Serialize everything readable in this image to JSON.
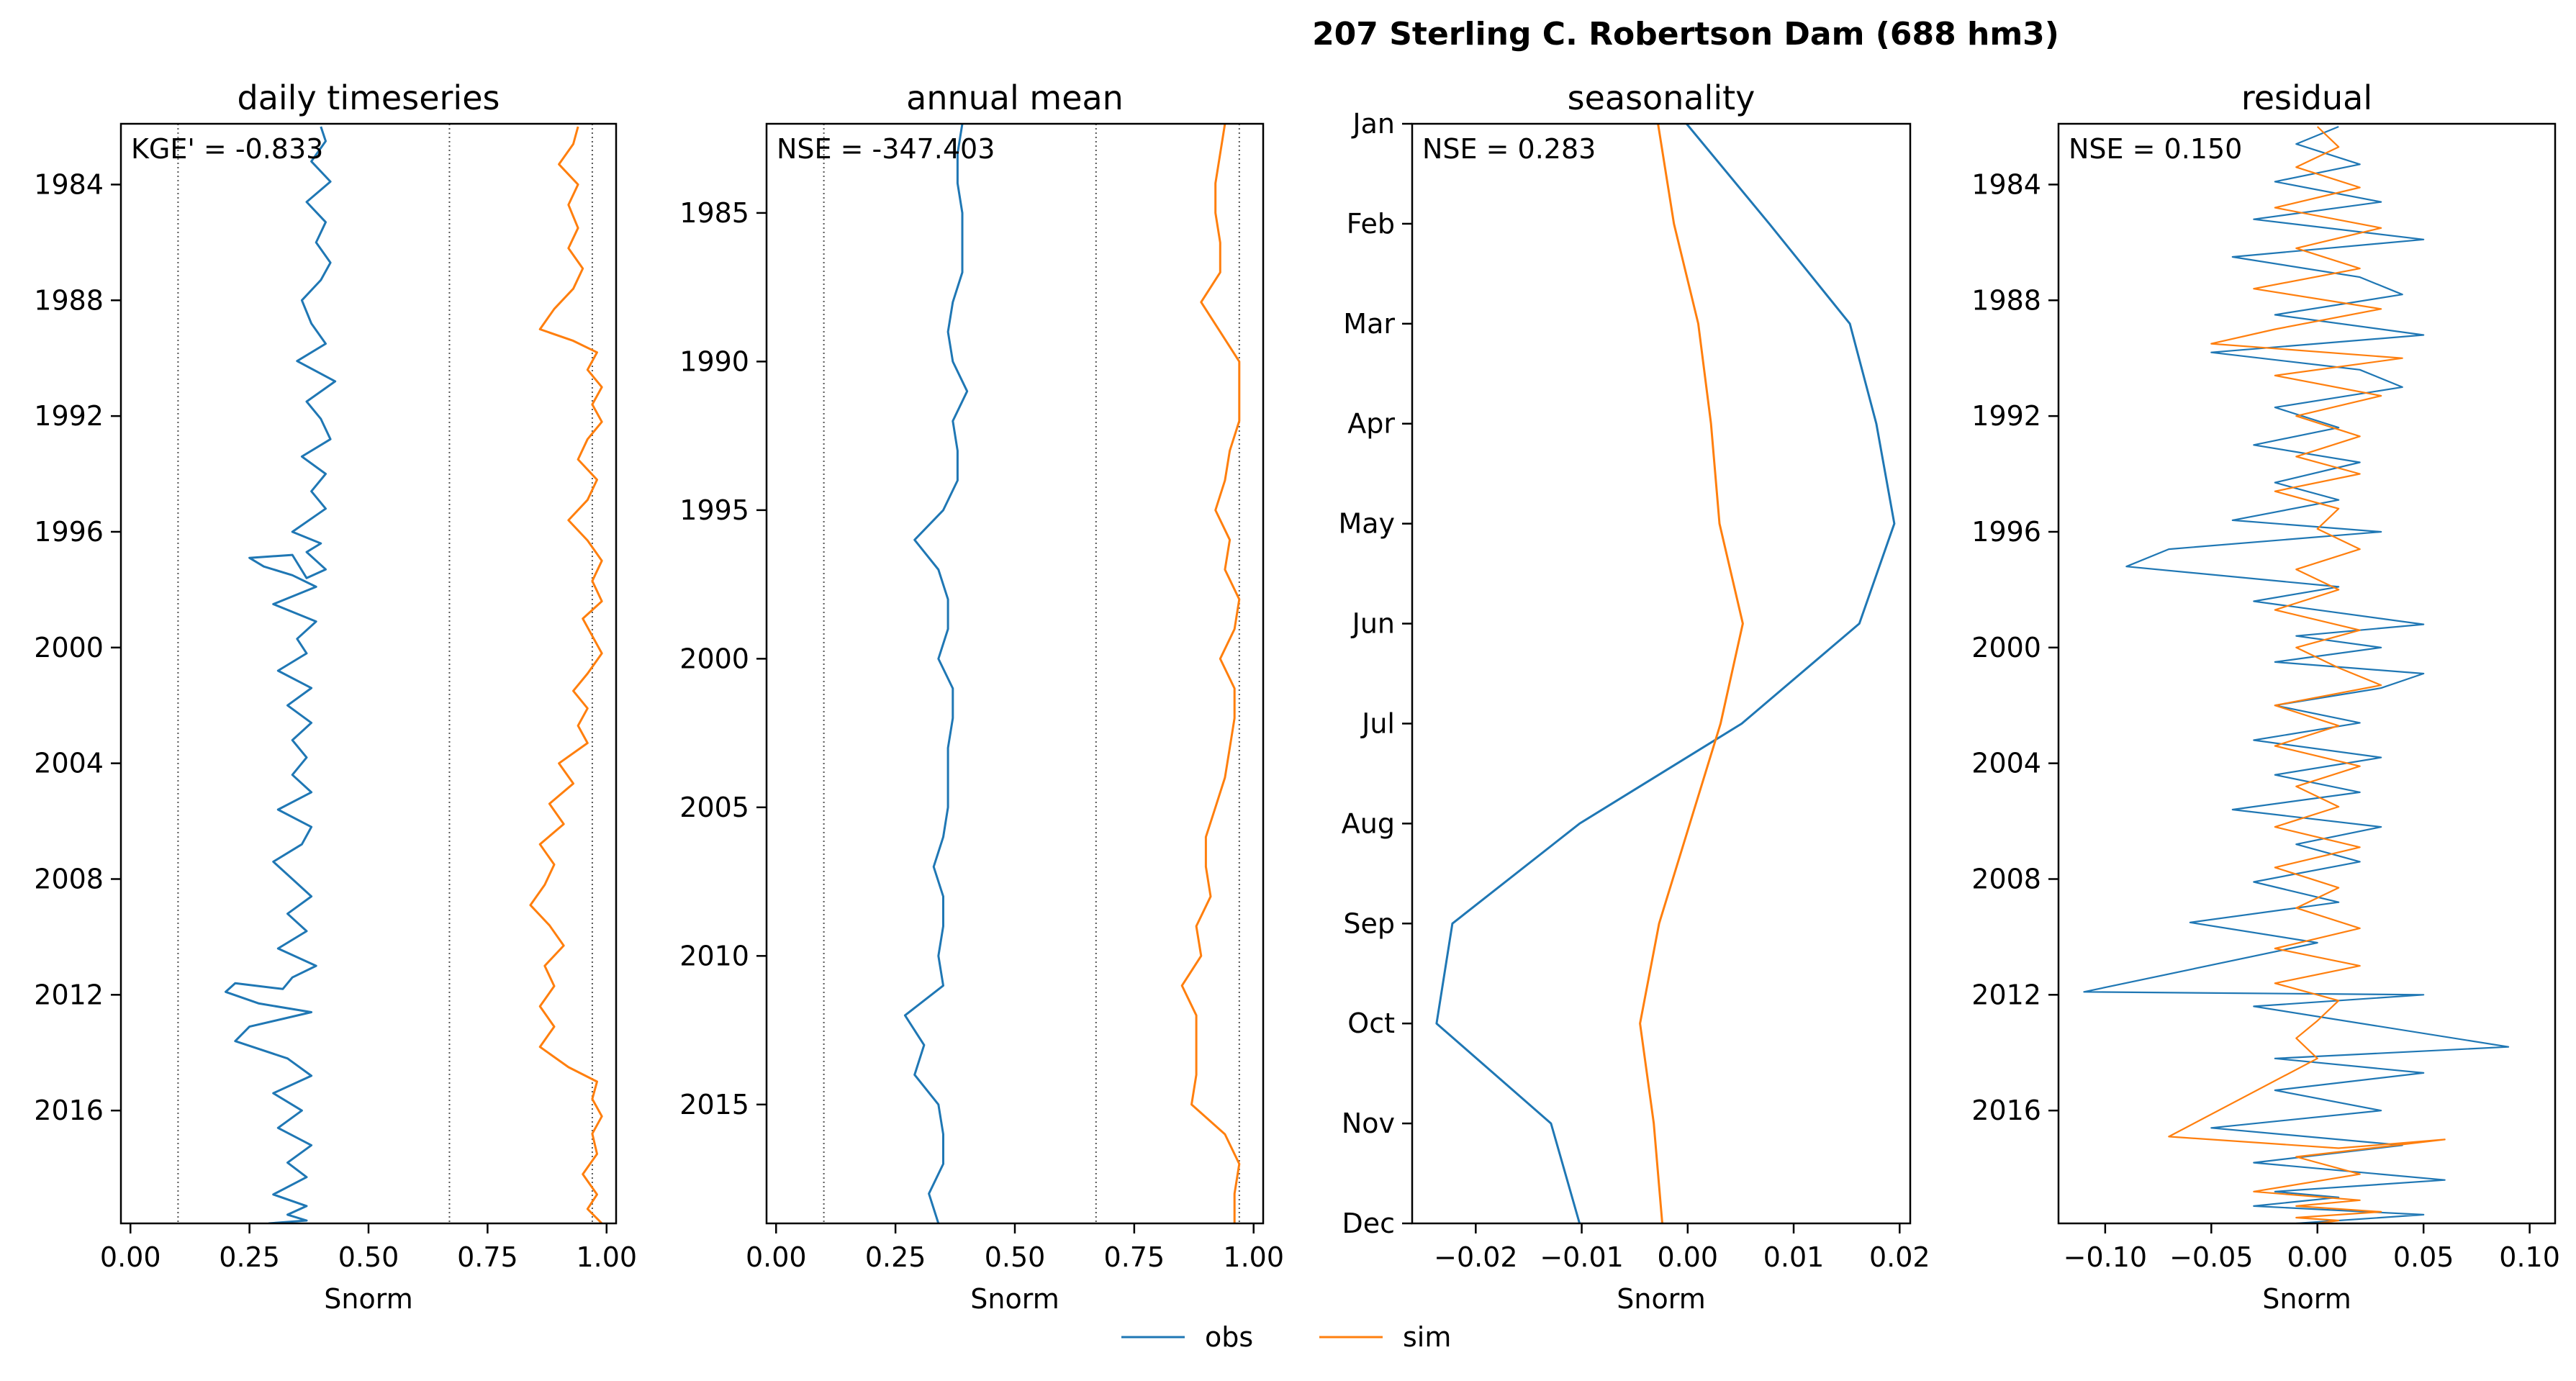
{
  "figure": {
    "suptitle": "207  Sterling C. Robertson Dam (688 hm3)",
    "legend": {
      "position": "bottom-center",
      "entries": [
        "obs",
        "sim"
      ]
    },
    "colors": {
      "obs": "#1f77b4",
      "sim": "#ff7f0e",
      "reference_lines": "#555555"
    }
  },
  "chart_data": [
    {
      "type": "line",
      "title": "daily timeseries",
      "xlabel": "Snorm",
      "ylabel": "",
      "annotation": "KGE' = -0.833",
      "xlim": [
        -0.02,
        1.02
      ],
      "ylim": [
        2019.9,
        1981.9
      ],
      "y_orientation": "inverted (time increases downward)",
      "xticks": [
        "0.00",
        "0.25",
        "0.50",
        "0.75",
        "1.00"
      ],
      "xtick_values": [
        0,
        0.25,
        0.5,
        0.75,
        1.0
      ],
      "yticks": [
        "1984",
        "1988",
        "1992",
        "1996",
        "2000",
        "2004",
        "2008",
        "2012",
        "2016"
      ],
      "ytick_values": [
        1984,
        1988,
        1992,
        1996,
        2000,
        2004,
        2008,
        2012,
        2016
      ],
      "reference_lines_x": [
        0.1,
        0.67,
        0.97
      ],
      "series": [
        {
          "name": "obs",
          "x": [
            0.4,
            0.41,
            0.38,
            0.42,
            0.37,
            0.41,
            0.39,
            0.42,
            0.4,
            0.36,
            0.38,
            0.41,
            0.35,
            0.43,
            0.37,
            0.4,
            0.42,
            0.36,
            0.41,
            0.38,
            0.41,
            0.34,
            0.4,
            0.37,
            0.41,
            0.37,
            0.34,
            0.25,
            0.28,
            0.34,
            0.39,
            0.3,
            0.39,
            0.35,
            0.37,
            0.31,
            0.38,
            0.33,
            0.38,
            0.34,
            0.37,
            0.34,
            0.38,
            0.31,
            0.38,
            0.36,
            0.3,
            0.34,
            0.38,
            0.33,
            0.37,
            0.31,
            0.39,
            0.34,
            0.32,
            0.22,
            0.2,
            0.27,
            0.38,
            0.25,
            0.22,
            0.33,
            0.38,
            0.3,
            0.36,
            0.31,
            0.38,
            0.33,
            0.37,
            0.3,
            0.37,
            0.33,
            0.37,
            0.29
          ],
          "y": [
            1982.0,
            1982.5,
            1983.2,
            1983.9,
            1984.6,
            1985.3,
            1986.0,
            1986.7,
            1987.3,
            1988.0,
            1988.8,
            1989.5,
            1990.1,
            1990.8,
            1991.5,
            1992.1,
            1992.8,
            1993.4,
            1994.0,
            1994.6,
            1995.2,
            1996.0,
            1996.4,
            1996.7,
            1997.3,
            1997.6,
            1996.8,
            1996.9,
            1997.2,
            1997.5,
            1997.9,
            1998.5,
            1999.1,
            1999.7,
            2000.2,
            2000.8,
            2001.4,
            2002.0,
            2002.6,
            2003.2,
            2003.8,
            2004.4,
            2005.0,
            2005.6,
            2006.2,
            2006.8,
            2007.4,
            2008.0,
            2008.6,
            2009.2,
            2009.8,
            2010.4,
            2011.0,
            2011.4,
            2011.8,
            2011.6,
            2011.9,
            2012.3,
            2012.6,
            2013.1,
            2013.6,
            2014.2,
            2014.8,
            2015.4,
            2016.0,
            2016.6,
            2017.2,
            2017.8,
            2018.3,
            2018.9,
            2019.3,
            2019.6,
            2019.8,
            2019.9
          ]
        },
        {
          "name": "sim",
          "x": [
            0.94,
            0.93,
            0.9,
            0.94,
            0.92,
            0.94,
            0.92,
            0.95,
            0.93,
            0.89,
            0.86,
            0.93,
            0.98,
            0.96,
            0.99,
            0.97,
            0.99,
            0.96,
            0.94,
            0.98,
            0.96,
            0.92,
            0.96,
            0.99,
            0.97,
            0.99,
            0.95,
            0.97,
            0.99,
            0.96,
            0.93,
            0.96,
            0.94,
            0.96,
            0.9,
            0.93,
            0.88,
            0.91,
            0.86,
            0.89,
            0.87,
            0.84,
            0.88,
            0.91,
            0.87,
            0.89,
            0.86,
            0.89,
            0.86,
            0.92,
            0.98,
            0.97,
            0.99,
            0.97,
            0.98,
            0.95,
            0.98,
            0.96,
            0.99
          ],
          "y": [
            1982.0,
            1982.6,
            1983.3,
            1984.0,
            1984.7,
            1985.5,
            1986.2,
            1986.9,
            1987.6,
            1988.3,
            1989.0,
            1989.4,
            1989.8,
            1990.4,
            1991.0,
            1991.6,
            1992.2,
            1992.8,
            1993.5,
            1994.2,
            1994.9,
            1995.6,
            1996.3,
            1997.0,
            1997.7,
            1998.4,
            1999.0,
            1999.6,
            2000.2,
            2000.9,
            2001.5,
            2002.1,
            2002.7,
            2003.3,
            2004.0,
            2004.7,
            2005.4,
            2006.1,
            2006.8,
            2007.5,
            2008.2,
            2008.9,
            2009.6,
            2010.3,
            2011.0,
            2011.7,
            2012.4,
            2013.1,
            2013.8,
            2014.5,
            2015.0,
            2015.6,
            2016.2,
            2016.8,
            2017.5,
            2018.2,
            2018.9,
            2019.4,
            2019.9
          ]
        }
      ]
    },
    {
      "type": "line",
      "title": "annual mean",
      "xlabel": "Snorm",
      "ylabel": "",
      "annotation": "NSE = -347.403",
      "xlim": [
        -0.02,
        1.02
      ],
      "ylim": [
        2019.0,
        1982.0
      ],
      "y_orientation": "inverted (time increases downward)",
      "xticks": [
        "0.00",
        "0.25",
        "0.50",
        "0.75",
        "1.00"
      ],
      "xtick_values": [
        0,
        0.25,
        0.5,
        0.75,
        1.0
      ],
      "yticks": [
        "1985",
        "1990",
        "1995",
        "2000",
        "2005",
        "2010",
        "2015"
      ],
      "ytick_values": [
        1985,
        1990,
        1995,
        2000,
        2005,
        2010,
        2015
      ],
      "reference_lines_x": [
        0.1,
        0.67,
        0.97
      ],
      "series": [
        {
          "name": "obs",
          "years": [
            1982,
            1983,
            1984,
            1985,
            1986,
            1987,
            1988,
            1989,
            1990,
            1991,
            1992,
            1993,
            1994,
            1995,
            1996,
            1997,
            1998,
            1999,
            2000,
            2001,
            2002,
            2003,
            2004,
            2005,
            2006,
            2007,
            2008,
            2009,
            2010,
            2011,
            2012,
            2013,
            2014,
            2015,
            2016,
            2017,
            2018,
            2019
          ],
          "values": [
            0.39,
            0.38,
            0.38,
            0.39,
            0.39,
            0.39,
            0.37,
            0.36,
            0.37,
            0.4,
            0.37,
            0.38,
            0.38,
            0.35,
            0.29,
            0.34,
            0.36,
            0.36,
            0.34,
            0.37,
            0.37,
            0.36,
            0.36,
            0.36,
            0.35,
            0.33,
            0.35,
            0.35,
            0.34,
            0.35,
            0.27,
            0.31,
            0.29,
            0.34,
            0.35,
            0.35,
            0.32,
            0.34
          ]
        },
        {
          "name": "sim",
          "years": [
            1982,
            1983,
            1984,
            1985,
            1986,
            1987,
            1988,
            1989,
            1990,
            1991,
            1992,
            1993,
            1994,
            1995,
            1996,
            1997,
            1998,
            1999,
            2000,
            2001,
            2002,
            2003,
            2004,
            2005,
            2006,
            2007,
            2008,
            2009,
            2010,
            2011,
            2012,
            2013,
            2014,
            2015,
            2016,
            2017,
            2018,
            2019
          ],
          "values": [
            0.94,
            0.93,
            0.92,
            0.92,
            0.93,
            0.93,
            0.89,
            0.93,
            0.97,
            0.97,
            0.97,
            0.95,
            0.94,
            0.92,
            0.95,
            0.94,
            0.97,
            0.96,
            0.93,
            0.96,
            0.96,
            0.95,
            0.94,
            0.92,
            0.9,
            0.9,
            0.91,
            0.88,
            0.89,
            0.85,
            0.88,
            0.88,
            0.88,
            0.87,
            0.94,
            0.97,
            0.96,
            0.96
          ]
        }
      ]
    },
    {
      "type": "line",
      "title": "seasonality",
      "xlabel": "Snorm",
      "ylabel": "",
      "annotation": "NSE = 0.283",
      "xlim": [
        -0.026,
        0.021
      ],
      "ylim": [
        12,
        1
      ],
      "y_orientation": "inverted (Jan at top, Dec at bottom)",
      "xticks": [
        "−0.02",
        "−0.01",
        "0.00",
        "0.01",
        "0.02"
      ],
      "xtick_values": [
        -0.02,
        -0.01,
        0.0,
        0.01,
        0.02
      ],
      "months": [
        "Jan",
        "Feb",
        "Mar",
        "Apr",
        "May",
        "Jun",
        "Jul",
        "Aug",
        "Sep",
        "Oct",
        "Nov",
        "Dec"
      ],
      "series": [
        {
          "name": "obs",
          "values": [
            -0.0001,
            0.0077,
            0.0153,
            0.0178,
            0.0195,
            0.0162,
            0.0051,
            -0.0102,
            -0.0222,
            -0.0237,
            -0.0129,
            -0.0102
          ]
        },
        {
          "name": "sim",
          "values": [
            -0.0028,
            -0.0013,
            0.001,
            0.0022,
            0.003,
            0.0052,
            0.0031,
            0.0002,
            -0.0027,
            -0.0045,
            -0.0032,
            -0.0024
          ]
        }
      ]
    },
    {
      "type": "line",
      "title": "residual",
      "xlabel": "Snorm",
      "ylabel": "",
      "annotation": "NSE = 0.150",
      "xlim": [
        -0.122,
        0.112
      ],
      "ylim": [
        2019.9,
        1981.9
      ],
      "y_orientation": "inverted (time increases downward)",
      "xticks": [
        "−0.10",
        "−0.05",
        "0.00",
        "0.05",
        "0.10"
      ],
      "xtick_values": [
        -0.1,
        -0.05,
        0.0,
        0.05,
        0.1
      ],
      "yticks": [
        "1984",
        "1988",
        "1992",
        "1996",
        "2000",
        "2004",
        "2008",
        "2012",
        "2016"
      ],
      "ytick_values": [
        1984,
        1988,
        1992,
        1996,
        2000,
        2004,
        2008,
        2012,
        2016
      ],
      "series": [
        {
          "name": "obs",
          "x": [
            0.01,
            -0.01,
            0.02,
            -0.02,
            0.03,
            -0.03,
            0.05,
            -0.04,
            0.02,
            0.04,
            -0.02,
            0.05,
            -0.05,
            0.02,
            0.04,
            -0.02,
            0.01,
            -0.03,
            0.02,
            -0.02,
            0.01,
            -0.04,
            0.03,
            -0.07,
            -0.09,
            0.01,
            -0.03,
            0.05,
            -0.01,
            0.03,
            -0.02,
            0.05,
            0.03,
            -0.02,
            0.02,
            -0.03,
            0.03,
            -0.02,
            0.02,
            -0.04,
            0.03,
            -0.01,
            0.02,
            -0.03,
            0.01,
            -0.06,
            0.0,
            -0.11,
            0.05,
            -0.03,
            0.09,
            -0.02,
            0.05,
            -0.02,
            0.03,
            -0.05,
            0.04,
            -0.03,
            0.06,
            -0.02,
            0.01,
            -0.03,
            0.05,
            -0.01
          ],
          "y": [
            1982.0,
            1982.6,
            1983.3,
            1983.9,
            1984.6,
            1985.2,
            1985.9,
            1986.5,
            1987.2,
            1987.8,
            1988.5,
            1989.2,
            1989.8,
            1990.4,
            1991.0,
            1991.7,
            1992.4,
            1993.0,
            1993.6,
            1994.3,
            1994.9,
            1995.6,
            1996.0,
            1996.6,
            1997.2,
            1997.9,
            1998.4,
            1999.2,
            1999.6,
            2000.0,
            2000.5,
            2000.9,
            2001.4,
            2002.0,
            2002.6,
            2003.2,
            2003.8,
            2004.4,
            2005.0,
            2005.6,
            2006.2,
            2006.8,
            2007.4,
            2008.1,
            2008.8,
            2009.5,
            2010.2,
            2011.9,
            2012.0,
            2012.4,
            2013.8,
            2014.2,
            2014.7,
            2015.3,
            2016.0,
            2016.6,
            2017.2,
            2017.8,
            2018.4,
            2018.8,
            2019.0,
            2019.3,
            2019.6,
            2019.9
          ]
        },
        {
          "name": "sim",
          "x": [
            0.0,
            0.01,
            -0.01,
            0.02,
            -0.02,
            0.03,
            -0.01,
            0.02,
            -0.03,
            0.03,
            -0.02,
            -0.05,
            0.04,
            -0.02,
            0.03,
            -0.01,
            0.02,
            -0.01,
            0.02,
            -0.02,
            0.01,
            0.0,
            0.02,
            -0.01,
            0.01,
            -0.02,
            0.02,
            -0.01,
            0.01,
            0.03,
            -0.02,
            0.01,
            -0.02,
            0.02,
            -0.01,
            0.01,
            -0.02,
            0.02,
            -0.02,
            0.01,
            -0.01,
            0.02,
            -0.02,
            0.02,
            -0.02,
            0.01,
            0.0,
            -0.01,
            0.0,
            -0.07,
            0.01,
            0.06,
            -0.01,
            0.02,
            -0.03,
            0.02,
            -0.01,
            0.03,
            -0.01,
            0.01,
            0.0
          ],
          "y": [
            1982.0,
            1982.7,
            1983.4,
            1984.1,
            1984.8,
            1985.5,
            1986.2,
            1986.9,
            1987.6,
            1988.3,
            1989.0,
            1989.5,
            1990.0,
            1990.6,
            1991.3,
            1992.0,
            1992.7,
            1993.4,
            1994.0,
            1994.6,
            1995.2,
            1995.9,
            1996.6,
            1997.3,
            1998.0,
            1998.7,
            1999.4,
            2000.0,
            2000.7,
            2001.3,
            2002.0,
            2002.7,
            2003.4,
            2004.1,
            2004.8,
            2005.5,
            2006.2,
            2006.9,
            2007.6,
            2008.3,
            2009.0,
            2009.7,
            2010.4,
            2011.0,
            2011.6,
            2012.2,
            2012.9,
            2013.5,
            2014.2,
            2016.9,
            2017.3,
            2017.0,
            2017.6,
            2018.2,
            2018.8,
            2019.1,
            2019.3,
            2019.5,
            2019.7,
            2019.8,
            2019.9
          ]
        }
      ]
    }
  ]
}
